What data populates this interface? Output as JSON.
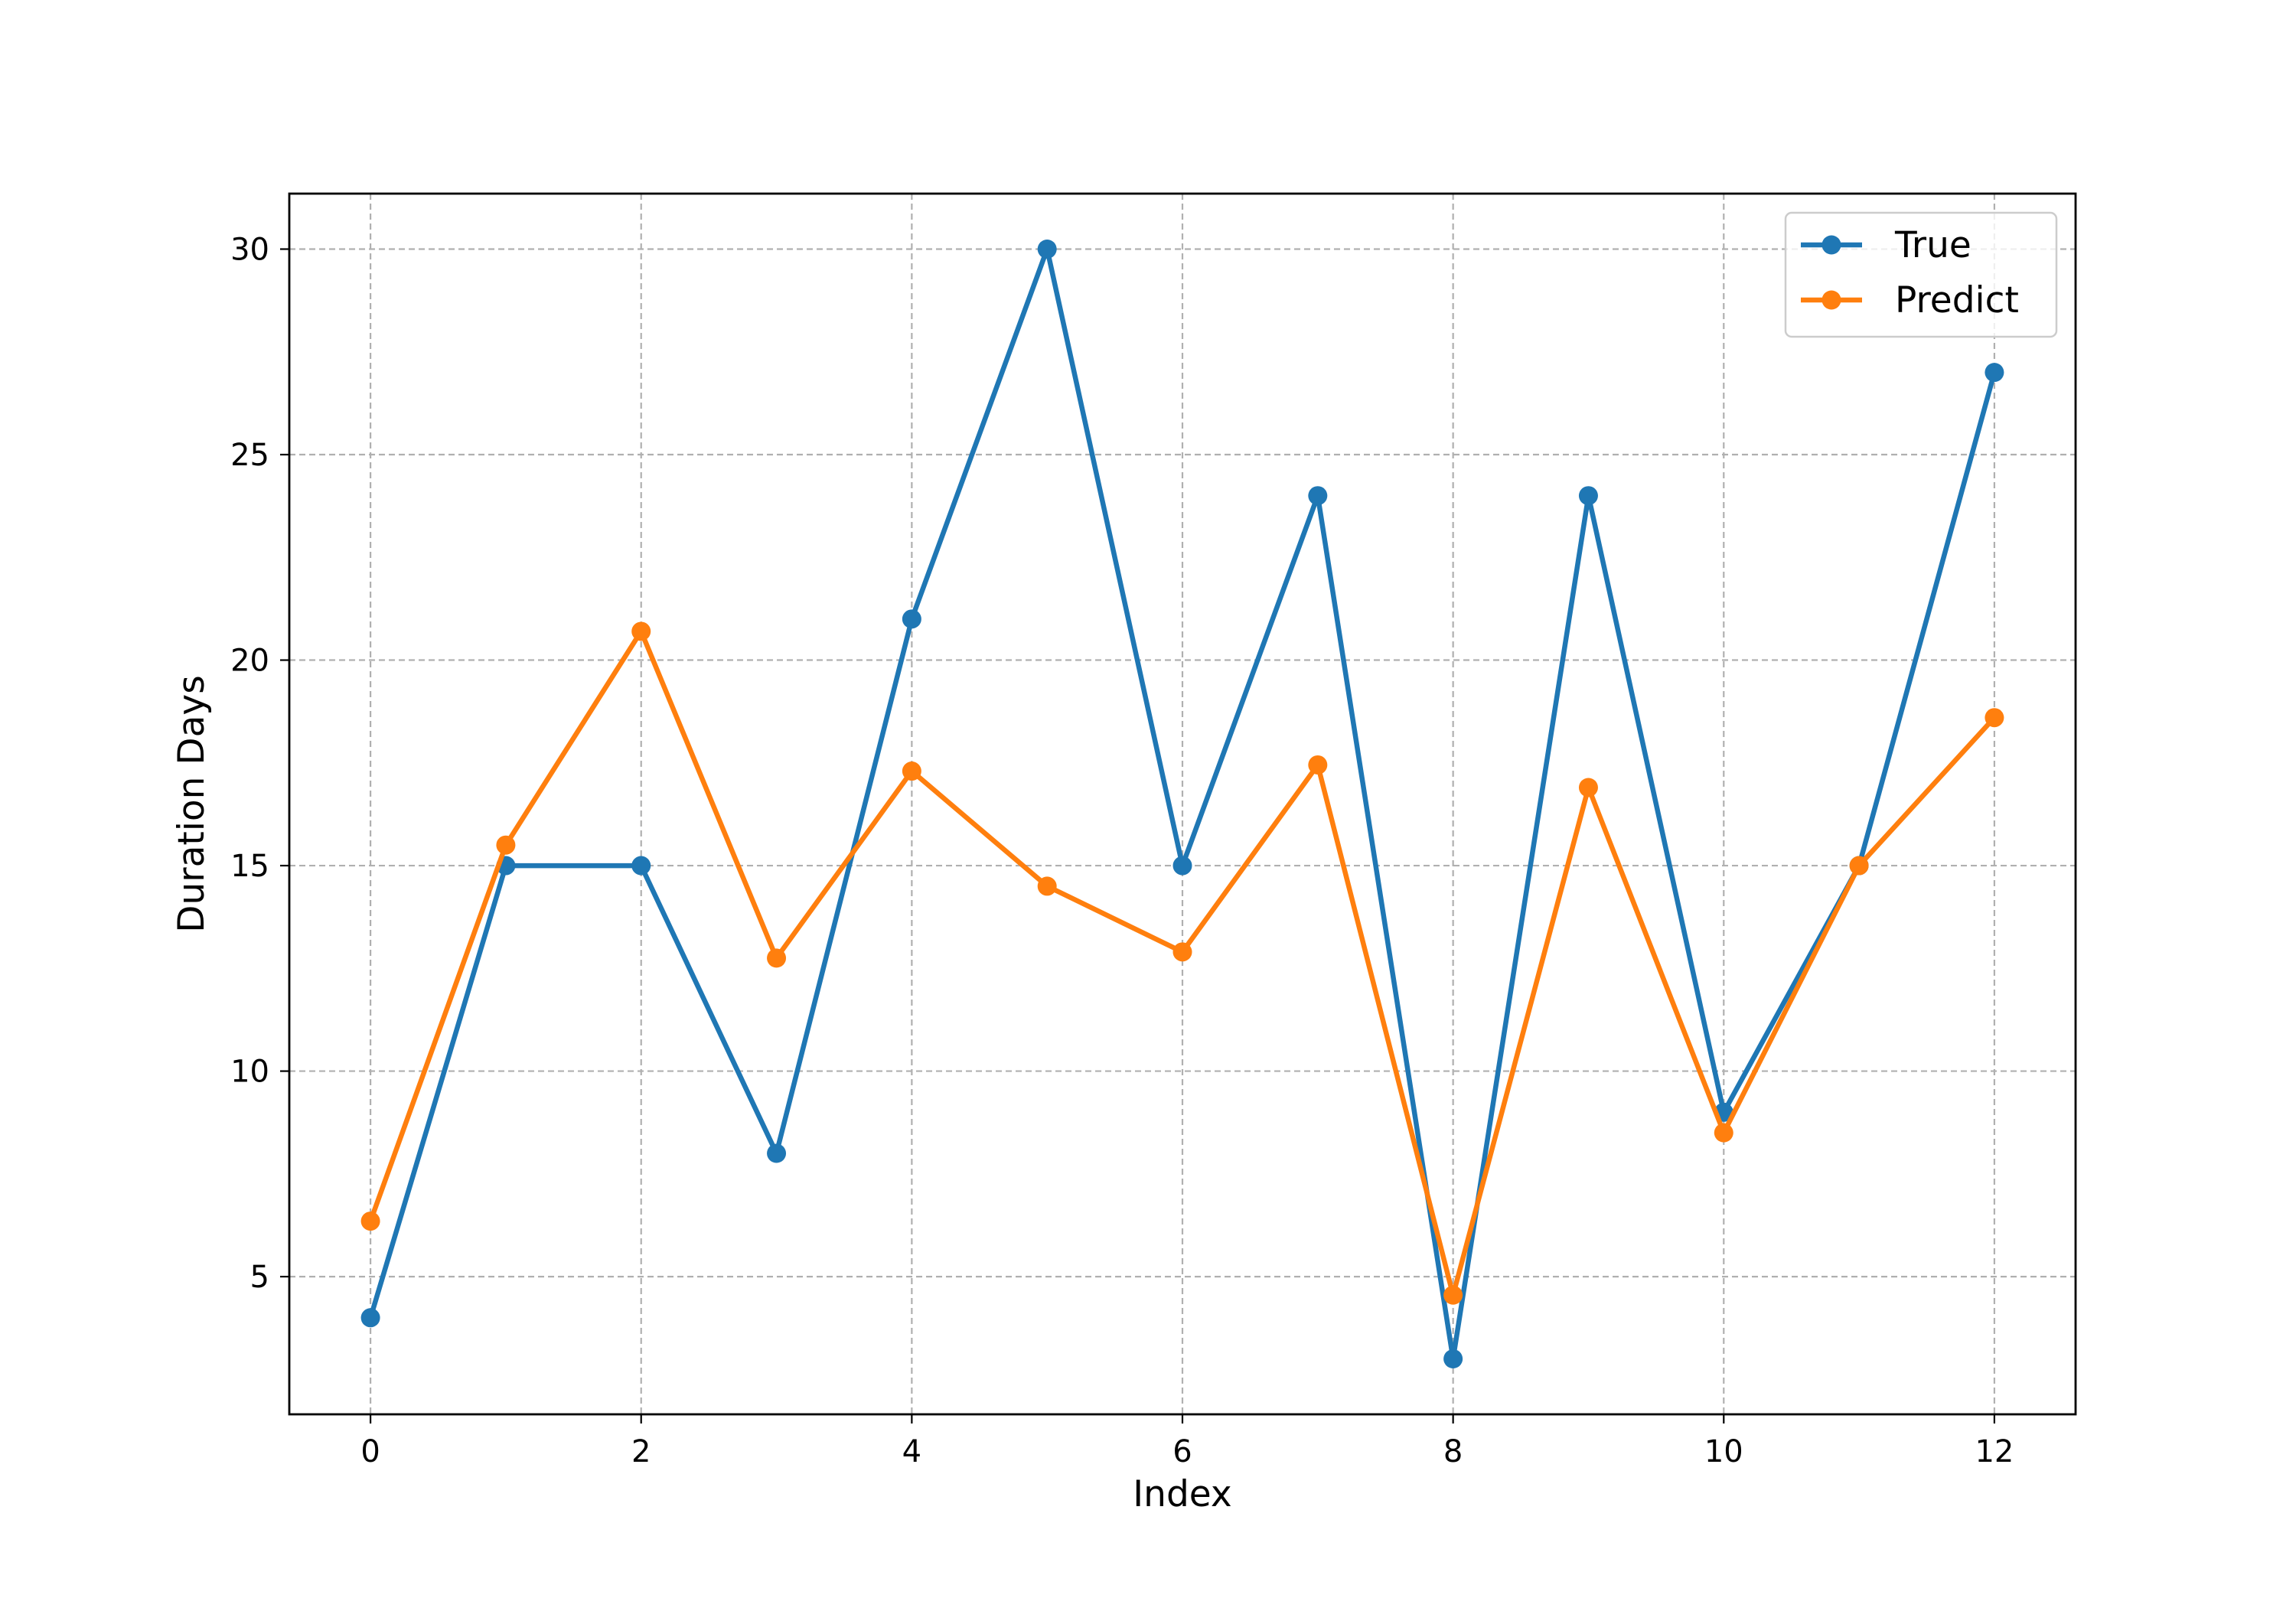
{
  "chart_data": {
    "type": "line",
    "title": "",
    "xlabel": "Index",
    "ylabel": "Duration Days",
    "x": [
      0,
      1,
      2,
      3,
      4,
      5,
      6,
      7,
      8,
      9,
      10,
      11,
      12
    ],
    "xlim": [
      -0.6,
      12.6
    ],
    "ylim": [
      1.65,
      31.35
    ],
    "xticks": [
      0,
      2,
      4,
      6,
      8,
      10,
      12
    ],
    "yticks": [
      5,
      10,
      15,
      20,
      25,
      30
    ],
    "xtick_labels": [
      "0",
      "2",
      "4",
      "6",
      "8",
      "10",
      "12"
    ],
    "ytick_labels": [
      "5",
      "10",
      "15",
      "20",
      "25",
      "30"
    ],
    "grid": true,
    "legend_position": "top-right",
    "series": [
      {
        "name": "True",
        "color": "#1f77b4",
        "marker": "circle",
        "values": [
          4,
          15,
          15,
          8,
          21,
          30,
          15,
          24,
          3,
          24,
          9,
          15,
          27
        ]
      },
      {
        "name": "Predict",
        "color": "#ff7f0e",
        "marker": "circle",
        "values": [
          6.35,
          15.5,
          20.7,
          12.75,
          17.3,
          14.5,
          12.9,
          17.45,
          4.55,
          16.9,
          8.5,
          15.0,
          18.6
        ]
      }
    ]
  }
}
